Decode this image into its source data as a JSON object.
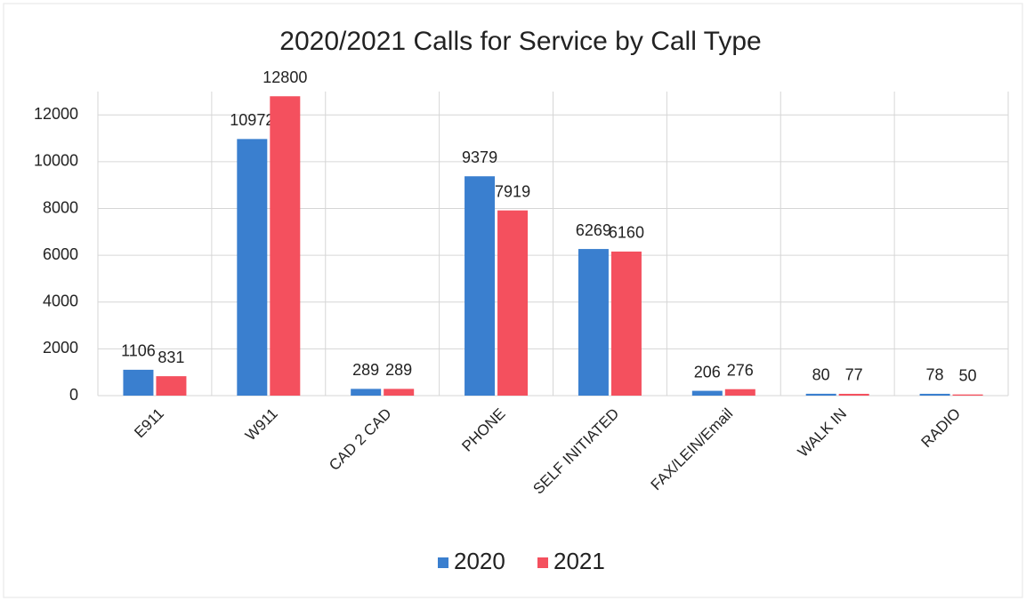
{
  "chart_data": {
    "type": "bar",
    "title": "2020/2021 Calls for Service by Call Type",
    "categories": [
      "E911",
      "W911",
      "CAD 2 CAD",
      "PHONE",
      "SELF INITIATED",
      "FAX/LEIN/Email",
      "WALK IN",
      "RADIO"
    ],
    "series": [
      {
        "name": "2020",
        "color": "#3a7fcf",
        "values": [
          1106,
          10972,
          289,
          9379,
          6269,
          206,
          80,
          78
        ]
      },
      {
        "name": "2021",
        "color": "#f4505e",
        "values": [
          831,
          12800,
          289,
          7919,
          6160,
          276,
          77,
          50
        ]
      }
    ],
    "ylim": [
      0,
      13000
    ],
    "yticks": [
      0,
      2000,
      4000,
      6000,
      8000,
      10000,
      12000
    ],
    "grid": true,
    "legend": "bottom"
  }
}
